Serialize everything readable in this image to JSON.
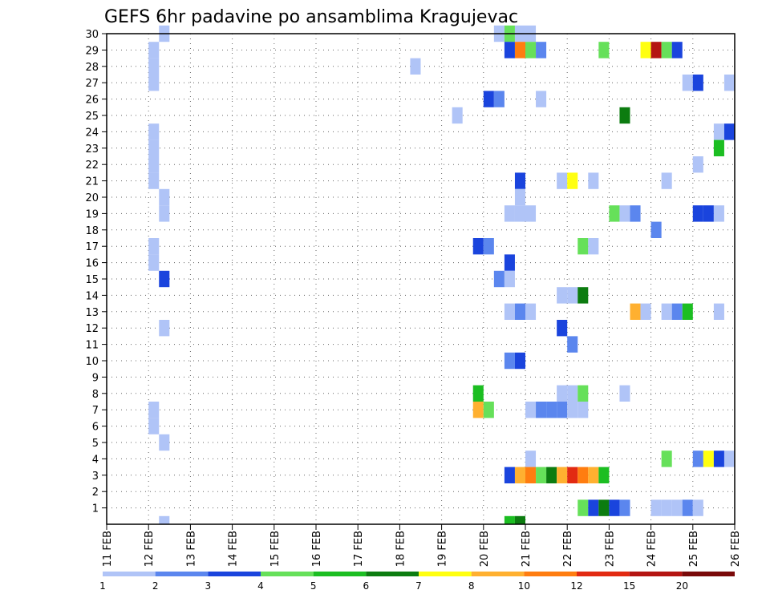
{
  "chart_data": {
    "type": "heatmap",
    "title": "GEFS 6hr padavine po ansamblima Kragujevac",
    "x_tick_labels": [
      "11 FEB",
      "12 FEB",
      "13 FEB",
      "14 FEB",
      "15 FEB",
      "16 FEB",
      "17 FEB",
      "18 FEB",
      "19 FEB",
      "20 FEB",
      "21 FEB",
      "22 FEB",
      "23 FEB",
      "24 FEB",
      "25 FEB",
      "26 FEB"
    ],
    "y_tick_labels": [
      "1",
      "2",
      "3",
      "4",
      "5",
      "6",
      "7",
      "8",
      "9",
      "10",
      "11",
      "12",
      "13",
      "14",
      "15",
      "16",
      "17",
      "18",
      "19",
      "20",
      "21",
      "22",
      "23",
      "24",
      "25",
      "26",
      "27",
      "28",
      "29",
      "30"
    ],
    "x_range_days": [
      11,
      26
    ],
    "y_range_members": [
      0,
      30
    ],
    "grid": "dotted",
    "legend": {
      "position": "bottom",
      "labels": [
        "1",
        "2",
        "3",
        "4",
        "5",
        "6",
        "7",
        "8",
        "10",
        "12",
        "15",
        "20"
      ],
      "colors": [
        "#b0c4f7",
        "#5b86ee",
        "#1a44dd",
        "#66e05a",
        "#1cbe22",
        "#0c7c10",
        "#ffff10",
        "#ffb030",
        "#ff7d10",
        "#e22a12",
        "#b41512",
        "#7a0a0a"
      ]
    },
    "cells": [
      [
        12.25,
        30,
        1
      ],
      [
        12.0,
        29,
        1
      ],
      [
        12.0,
        28,
        1
      ],
      [
        12.0,
        27,
        1
      ],
      [
        12.0,
        24,
        1
      ],
      [
        12.0,
        23,
        1
      ],
      [
        12.0,
        22,
        1
      ],
      [
        12.0,
        21,
        1
      ],
      [
        12.25,
        20,
        1
      ],
      [
        12.25,
        19,
        1
      ],
      [
        12.0,
        17,
        1
      ],
      [
        12.0,
        16,
        1
      ],
      [
        12.25,
        15,
        3
      ],
      [
        12.25,
        12,
        1
      ],
      [
        12.0,
        7,
        1
      ],
      [
        12.0,
        6,
        1
      ],
      [
        12.25,
        5,
        1
      ],
      [
        12.25,
        0,
        1
      ],
      [
        18.25,
        28,
        1
      ],
      [
        19.25,
        25,
        1
      ],
      [
        20.25,
        30,
        1
      ],
      [
        20.5,
        30,
        4
      ],
      [
        20.75,
        30,
        1
      ],
      [
        21.0,
        30,
        1
      ],
      [
        20.5,
        29,
        3
      ],
      [
        20.75,
        29,
        9
      ],
      [
        21.0,
        29,
        4
      ],
      [
        21.25,
        29,
        2
      ],
      [
        22.75,
        29,
        4
      ],
      [
        23.75,
        29,
        7
      ],
      [
        24.0,
        29,
        11
      ],
      [
        24.25,
        29,
        4
      ],
      [
        24.5,
        29,
        3
      ],
      [
        24.75,
        27,
        1
      ],
      [
        25.0,
        27,
        3
      ],
      [
        25.75,
        27,
        1
      ],
      [
        20.0,
        26,
        3
      ],
      [
        20.25,
        26,
        2
      ],
      [
        21.25,
        26,
        1
      ],
      [
        23.25,
        25,
        6
      ],
      [
        25.5,
        24,
        1
      ],
      [
        25.75,
        24,
        3
      ],
      [
        25.5,
        23,
        5
      ],
      [
        25.0,
        22,
        1
      ],
      [
        20.75,
        21,
        3
      ],
      [
        21.75,
        21,
        1
      ],
      [
        22.0,
        21,
        7
      ],
      [
        22.5,
        21,
        1
      ],
      [
        24.25,
        21,
        1
      ],
      [
        20.75,
        20,
        1
      ],
      [
        20.5,
        19,
        1
      ],
      [
        20.75,
        19,
        1
      ],
      [
        21.0,
        19,
        1
      ],
      [
        23.0,
        19,
        4
      ],
      [
        23.25,
        19,
        1
      ],
      [
        23.5,
        19,
        2
      ],
      [
        25.0,
        19,
        3
      ],
      [
        25.25,
        19,
        3
      ],
      [
        25.5,
        19,
        1
      ],
      [
        24.0,
        18,
        2
      ],
      [
        19.75,
        17,
        3
      ],
      [
        20.0,
        17,
        2
      ],
      [
        22.25,
        17,
        4
      ],
      [
        22.5,
        17,
        1
      ],
      [
        20.5,
        16,
        3
      ],
      [
        20.25,
        15,
        2
      ],
      [
        20.5,
        15,
        1
      ],
      [
        21.75,
        14,
        1
      ],
      [
        22.0,
        14,
        1
      ],
      [
        22.25,
        14,
        6
      ],
      [
        20.5,
        13,
        1
      ],
      [
        20.75,
        13,
        2
      ],
      [
        21.0,
        13,
        1
      ],
      [
        23.5,
        13,
        8
      ],
      [
        23.75,
        13,
        1
      ],
      [
        24.25,
        13,
        1
      ],
      [
        24.5,
        13,
        2
      ],
      [
        24.75,
        13,
        5
      ],
      [
        25.5,
        13,
        1
      ],
      [
        21.75,
        12,
        3
      ],
      [
        22.0,
        11,
        2
      ],
      [
        20.5,
        10,
        2
      ],
      [
        20.75,
        10,
        3
      ],
      [
        21.75,
        8,
        1
      ],
      [
        22.0,
        8,
        1
      ],
      [
        22.25,
        8,
        4
      ],
      [
        23.25,
        8,
        1
      ],
      [
        19.75,
        8,
        5
      ],
      [
        19.75,
        7,
        8
      ],
      [
        20.0,
        7,
        4
      ],
      [
        21.0,
        7,
        1
      ],
      [
        21.25,
        7,
        2
      ],
      [
        21.5,
        7,
        2
      ],
      [
        21.75,
        7,
        2
      ],
      [
        22.0,
        7,
        1
      ],
      [
        22.25,
        7,
        1
      ],
      [
        21.0,
        4,
        1
      ],
      [
        24.25,
        4,
        4
      ],
      [
        25.0,
        4,
        2
      ],
      [
        25.25,
        4,
        7
      ],
      [
        25.5,
        4,
        3
      ],
      [
        25.75,
        4,
        1
      ],
      [
        20.5,
        3,
        3
      ],
      [
        20.75,
        3,
        8
      ],
      [
        21.0,
        3,
        9
      ],
      [
        21.25,
        3,
        4
      ],
      [
        21.5,
        3,
        6
      ],
      [
        21.75,
        3,
        8
      ],
      [
        22.0,
        3,
        10
      ],
      [
        22.25,
        3,
        9
      ],
      [
        22.5,
        3,
        8
      ],
      [
        22.75,
        3,
        5
      ],
      [
        22.25,
        1,
        4
      ],
      [
        22.5,
        1,
        3
      ],
      [
        22.75,
        1,
        6
      ],
      [
        23.0,
        1,
        3
      ],
      [
        23.25,
        1,
        2
      ],
      [
        24.0,
        1,
        1
      ],
      [
        24.25,
        1,
        1
      ],
      [
        24.5,
        1,
        1
      ],
      [
        24.75,
        1,
        2
      ],
      [
        25.0,
        1,
        1
      ],
      [
        20.5,
        0,
        5
      ],
      [
        20.75,
        0,
        6
      ]
    ]
  }
}
